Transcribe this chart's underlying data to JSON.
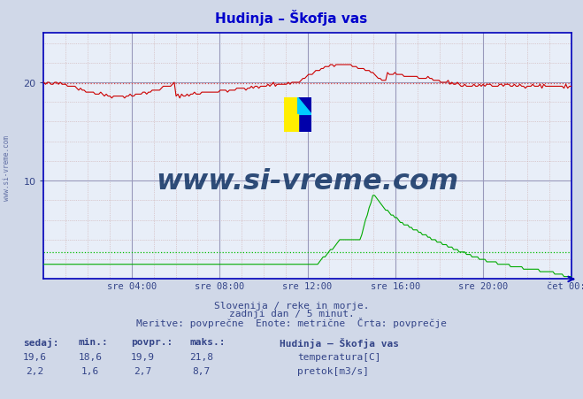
{
  "title": "Hudinja – Škofja vas",
  "title_color": "#0000cc",
  "bg_color": "#d0d8e8",
  "plot_bg_color": "#e8eef8",
  "grid_major_color": "#9999bb",
  "grid_minor_color": "#ccaaaa",
  "xlabel_ticks": [
    "sre 04:00",
    "sre 08:00",
    "sre 12:00",
    "sre 16:00",
    "sre 20:00",
    "čet 00:00"
  ],
  "xlabel_tick_positions": [
    0.167,
    0.333,
    0.5,
    0.667,
    0.833,
    1.0
  ],
  "ylim": [
    0,
    25
  ],
  "yticks": [
    10,
    20
  ],
  "ylabel_color": "#334488",
  "axis_color": "#0000bb",
  "temp_color": "#cc0000",
  "flow_color": "#00aa00",
  "avg_temp_color": "#dd4444",
  "avg_flow_color": "#00bb00",
  "watermark_text": "www.si-vreme.com",
  "watermark_color": "#1a3a6a",
  "sub_text1": "Slovenija / reke in morje.",
  "sub_text2": "zadnji dan / 5 minut.",
  "sub_text3": "Meritve: povprečne  Enote: metrične  Črta: povprečje",
  "sub_text_color": "#334488",
  "legend_title": "Hudinja – Škofja vas",
  "stats_headers": [
    "sedaj:",
    "min.:",
    "povpr.:",
    "maks.:"
  ],
  "temp_stats": [
    "19,6",
    "18,6",
    "19,9",
    "21,8"
  ],
  "flow_stats": [
    "2,2",
    "1,6",
    "2,7",
    "8,7"
  ],
  "temp_label": "temperatura[C]",
  "flow_label": "pretok[m3/s]",
  "n_points": 288,
  "temp_avg": 19.9,
  "flow_avg": 2.7
}
